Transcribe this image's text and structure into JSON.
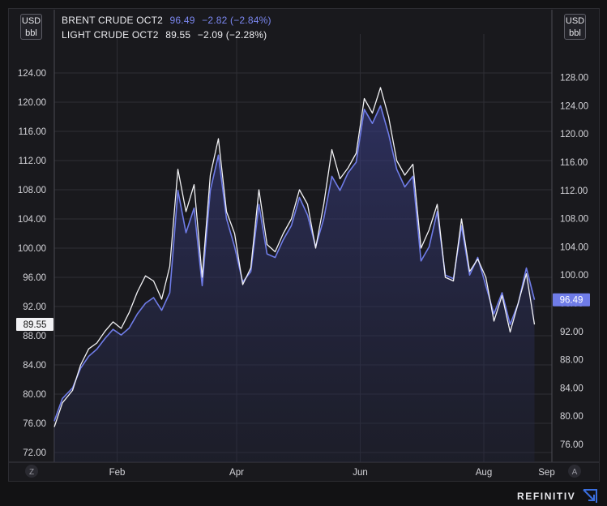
{
  "units": {
    "left": [
      "USD",
      "bbl"
    ],
    "right": [
      "USD",
      "bbl"
    ]
  },
  "legend": [
    {
      "name": "BRENT CRUDE OCT2",
      "last": "96.49",
      "change": "−2.82 (−2.84%)",
      "color": "#6f7ce8"
    },
    {
      "name": "LIGHT CRUDE OCT2",
      "last": "89.55",
      "change": "−2.09 (−2.28%)",
      "color": "#f2f2f5"
    }
  ],
  "left_price_tag": "89.55",
  "right_price_tag": "96.49",
  "left_axis_button": "Z",
  "right_axis_button": "A",
  "logo_text": "REFINITIV",
  "chart_data": {
    "type": "line",
    "x_ticks": [
      "Feb",
      "Apr",
      "Jun",
      "Aug",
      "Sep"
    ],
    "y_left_ticks": [
      "72.00",
      "76.00",
      "80.00",
      "84.00",
      "88.00",
      "92.00",
      "96.00",
      "100.00",
      "104.00",
      "108.00",
      "112.00",
      "116.00",
      "120.00",
      "124.00"
    ],
    "y_right_ticks": [
      "76.00",
      "80.00",
      "84.00",
      "88.00",
      "92.00",
      "96.00",
      "100.00",
      "104.00",
      "108.00",
      "112.00",
      "116.00",
      "120.00",
      "124.00",
      "128.00"
    ],
    "y_left_range": [
      72,
      125
    ],
    "y_right_range": [
      73.6,
      134.5
    ],
    "x_range": [
      1,
      240
    ],
    "x_tick_positions": [
      32,
      91,
      152,
      213,
      244
    ],
    "grid": true,
    "series": [
      {
        "name": "LIGHT CRUDE OCT2",
        "axis": "left",
        "color": "#f2f2f5",
        "x": [
          1,
          5,
          10,
          14,
          18,
          22,
          26,
          30,
          34,
          38,
          42,
          46,
          50,
          54,
          58,
          62,
          66,
          70,
          74,
          78,
          82,
          86,
          90,
          94,
          98,
          102,
          106,
          110,
          114,
          118,
          122,
          126,
          130,
          134,
          138,
          142,
          146,
          150,
          154,
          158,
          162,
          166,
          170,
          174,
          178,
          182,
          186,
          190,
          194,
          198,
          202,
          206,
          210,
          214,
          218,
          222,
          226,
          230,
          234,
          238
        ],
        "values": [
          75.5,
          78.8,
          80.5,
          84.0,
          86.2,
          87.0,
          88.6,
          89.9,
          89.0,
          91.2,
          94.0,
          96.2,
          95.5,
          93.0,
          97.5,
          110.8,
          105.0,
          108.7,
          96.0,
          110.0,
          115.0,
          105.0,
          102.0,
          95.0,
          97.3,
          108.0,
          100.5,
          99.5,
          102.0,
          104.0,
          108.0,
          106.0,
          100.0,
          106.0,
          113.5,
          109.5,
          111.0,
          113.0,
          120.5,
          118.5,
          122.0,
          118.0,
          112.0,
          110.0,
          111.5,
          100.0,
          102.5,
          106.0,
          96.0,
          95.5,
          104.0,
          96.8,
          98.5,
          96.0,
          90.0,
          93.5,
          88.5,
          92.5,
          96.5,
          89.55
        ]
      },
      {
        "name": "BRENT CRUDE OCT2",
        "axis": "right",
        "color": "#6f7ce8",
        "x": [
          1,
          5,
          10,
          14,
          18,
          22,
          26,
          30,
          34,
          38,
          42,
          46,
          50,
          54,
          58,
          62,
          66,
          70,
          74,
          78,
          82,
          86,
          90,
          94,
          98,
          102,
          106,
          110,
          114,
          118,
          122,
          126,
          130,
          134,
          138,
          142,
          146,
          150,
          154,
          158,
          162,
          166,
          170,
          174,
          178,
          182,
          186,
          190,
          194,
          198,
          202,
          206,
          210,
          214,
          218,
          222,
          226,
          230,
          234,
          238
        ],
        "values": [
          79.3,
          82.5,
          84.0,
          86.8,
          88.5,
          89.5,
          91.0,
          92.3,
          91.5,
          92.5,
          94.5,
          96.0,
          96.8,
          95.0,
          97.5,
          112.0,
          106.0,
          109.5,
          98.5,
          112.0,
          117.0,
          108.0,
          104.0,
          99.0,
          100.5,
          110.0,
          103.0,
          102.5,
          105.0,
          107.0,
          111.0,
          108.5,
          104.0,
          108.0,
          114.0,
          112.0,
          114.5,
          116.0,
          123.5,
          121.5,
          124.0,
          120.0,
          115.0,
          112.5,
          114.0,
          102.0,
          104.0,
          109.0,
          100.0,
          99.5,
          107.0,
          100.0,
          102.5,
          98.5,
          94.5,
          97.5,
          93.0,
          96.0,
          101.0,
          96.49
        ]
      }
    ]
  }
}
